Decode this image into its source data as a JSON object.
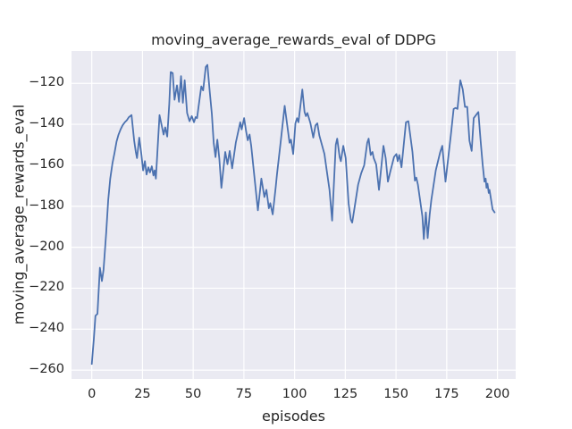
{
  "figure": {
    "title": "moving_average_rewards_eval of DDPG",
    "xlabel": "episodes",
    "ylabel": "moving_average_rewards_eval"
  },
  "colors": {
    "figure_background": "#ffffff",
    "axes_background": "#eaeaf2",
    "grid": "#ffffff",
    "line": "#4c72b0",
    "text": "#262626"
  },
  "chart_data": {
    "type": "line",
    "title": "moving_average_rewards_eval of DDPG",
    "xlabel": "episodes",
    "ylabel": "moving_average_rewards_eval",
    "grid": true,
    "legend": false,
    "xlim": [
      -10,
      209
    ],
    "ylim": [
      -264.3,
      -104.2
    ],
    "xticks": [
      0,
      25,
      50,
      75,
      100,
      125,
      150,
      175,
      200
    ],
    "xtick_labels": [
      "0",
      "25",
      "50",
      "75",
      "100",
      "125",
      "150",
      "175",
      "200"
    ],
    "yticks": [
      -120,
      -140,
      -160,
      -180,
      -200,
      -220,
      -240,
      -260
    ],
    "ytick_labels": [
      "−120",
      "−140",
      "−160",
      "−180",
      "−200",
      "−220",
      "−240",
      "−260"
    ],
    "series": [
      {
        "name": "moving_average_rewards_eval",
        "color": "#4c72b0",
        "x": [
          0,
          1,
          1.8,
          2.8,
          4,
          5,
          5.8,
          7.1,
          8.1,
          9.1,
          10.2,
          11.2,
          12.2,
          13.2,
          14.2,
          15.2,
          16.3,
          17.3,
          18.3,
          19.6,
          20.9,
          21.7,
          22.3,
          23.4,
          24.5,
          25.3,
          26.2,
          27,
          27.9,
          28.7,
          29.6,
          30.4,
          31,
          31.6,
          33.4,
          35.4,
          36.2,
          37.2,
          38.2,
          38.9,
          39.9,
          40.8,
          42,
          43,
          44,
          44.9,
          45.8,
          47,
          48.2,
          49.3,
          50.4,
          51.2,
          51.9,
          52.9,
          54,
          54.9,
          56.2,
          57,
          58.2,
          59.2,
          60.1,
          61,
          61.9,
          62.9,
          63.9,
          65.8,
          66.9,
          68,
          69.2,
          71,
          73.2,
          73.9,
          75.1,
          76.1,
          76.9,
          77.8,
          78.6,
          79.8,
          81.9,
          83.6,
          85.1,
          86.1,
          87.3,
          88,
          89.2,
          90.7,
          91.3,
          93.2,
          95.1,
          97.5,
          98.2,
          99.3,
          100.4,
          101.2,
          101.9,
          103.8,
          104.9,
          105.6,
          106.3,
          107.8,
          109.2,
          110.3,
          111.2,
          112.2,
          112.9,
          114.7,
          115.9,
          117.2,
          118.5,
          120.3,
          121,
          122.2,
          122.8,
          124,
          125.2,
          126.6,
          127.7,
          128.4,
          129.9,
          131.3,
          132.8,
          134.3,
          135.8,
          136.5,
          137.5,
          138.4,
          139,
          140.2,
          141.6,
          143.8,
          144.9,
          146,
          147.2,
          149,
          150.2,
          150.8,
          151.6,
          152.7,
          154.9,
          156.1,
          158.1,
          159.3,
          160,
          160.8,
          163,
          163.7,
          164.7,
          165.6,
          166.6,
          167.4,
          169.6,
          171.8,
          172.8,
          174.4,
          177,
          178.4,
          179.4,
          180.3,
          181.7,
          182.9,
          184,
          185.1,
          186.2,
          187.3,
          188.3,
          190.2,
          190.6,
          191.7,
          192.7,
          193.6,
          194.2,
          194.6,
          195.1,
          195.7,
          196.1,
          197.6,
          198.6
        ],
        "y": [
          -257,
          -245,
          -233.5,
          -232.5,
          -210,
          -216.5,
          -211,
          -193,
          -177,
          -166.5,
          -159,
          -154,
          -148.5,
          -145,
          -142.5,
          -140.5,
          -139,
          -138,
          -136.5,
          -135.5,
          -148,
          -153.5,
          -156.5,
          -146.5,
          -155,
          -162.5,
          -158,
          -164.5,
          -161,
          -163.5,
          -160.5,
          -165,
          -162.5,
          -166.5,
          -135.5,
          -145,
          -141.5,
          -146,
          -130,
          -114.5,
          -115,
          -128,
          -121,
          -129,
          -116.5,
          -129.5,
          -118.5,
          -134.5,
          -138.5,
          -136,
          -139,
          -136.5,
          -137,
          -129.5,
          -121.5,
          -123.5,
          -112,
          -111,
          -124.5,
          -135,
          -149,
          -156,
          -147.5,
          -157,
          -171,
          -153.5,
          -159.5,
          -153,
          -161.5,
          -149,
          -139,
          -142.5,
          -137,
          -143.5,
          -147.8,
          -145,
          -150.5,
          -162,
          -182,
          -166.5,
          -175.5,
          -172,
          -181,
          -178.5,
          -184,
          -170.5,
          -164.5,
          -148,
          -131,
          -149,
          -147.5,
          -154.5,
          -139.5,
          -137,
          -139,
          -123,
          -134,
          -136,
          -134.5,
          -139.5,
          -146.5,
          -140.5,
          -139.5,
          -145.5,
          -148,
          -154.5,
          -163,
          -172,
          -187,
          -150,
          -147,
          -156,
          -158,
          -150.5,
          -156.5,
          -178.5,
          -186.5,
          -188,
          -178.5,
          -169.5,
          -164,
          -160,
          -149,
          -147,
          -155,
          -153.5,
          -156.5,
          -159.5,
          -172,
          -150.5,
          -156.5,
          -168,
          -163,
          -156,
          -154.5,
          -158,
          -155,
          -161,
          -139,
          -138.5,
          -153.5,
          -167.5,
          -166,
          -169.5,
          -185,
          -196,
          -183,
          -195.5,
          -184,
          -177,
          -162.5,
          -153.5,
          -150.5,
          -168,
          -145.5,
          -132.5,
          -132,
          -132.5,
          -118.5,
          -123,
          -131.5,
          -131.5,
          -148,
          -153,
          -137,
          -134.5,
          -134,
          -148,
          -159.5,
          -168,
          -166.5,
          -171,
          -169,
          -173.5,
          -172,
          -181.5,
          -183
        ]
      }
    ]
  }
}
